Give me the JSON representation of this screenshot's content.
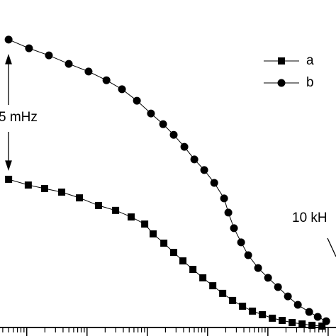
{
  "chart_data": {
    "type": "line",
    "xscale": "log",
    "xlim": [
      0.036,
      13500
    ],
    "ylim": [
      0,
      1.2
    ],
    "xticks": [
      0.1,
      1,
      10,
      100,
      1000,
      10000
    ],
    "series": [
      {
        "name": "a",
        "color": "#000000",
        "marker": "square",
        "x": [
          0.05,
          0.106,
          0.198,
          0.38,
          0.748,
          1.55,
          2.98,
          5.4,
          9.05,
          12.5,
          18.8,
          27.4,
          39,
          57.1,
          83.4,
          122,
          178,
          260,
          380,
          555,
          811,
          1187,
          1731,
          2531,
          3700,
          5400,
          7895
        ],
        "values": [
          0.543,
          0.522,
          0.509,
          0.496,
          0.475,
          0.447,
          0.429,
          0.405,
          0.379,
          0.343,
          0.309,
          0.275,
          0.244,
          0.213,
          0.182,
          0.153,
          0.125,
          0.099,
          0.078,
          0.06,
          0.047,
          0.034,
          0.026,
          0.018,
          0.013,
          0.008,
          0.005
        ]
      },
      {
        "name": "b",
        "color": "#000000",
        "marker": "circle",
        "x": [
          0.05,
          0.109,
          0.233,
          0.498,
          1.06,
          2.1,
          3.8,
          6.72,
          11.5,
          18.3,
          27.4,
          41.2,
          60.3,
          88,
          129,
          188,
          221,
          274,
          360,
          472,
          689,
          1008,
          1473,
          2149,
          3143,
          4846,
          6718,
          9295
        ],
        "values": [
          1.055,
          1.023,
          0.997,
          0.966,
          0.938,
          0.906,
          0.873,
          0.831,
          0.784,
          0.745,
          0.706,
          0.662,
          0.616,
          0.577,
          0.53,
          0.473,
          0.421,
          0.364,
          0.312,
          0.265,
          0.218,
          0.182,
          0.148,
          0.114,
          0.083,
          0.057,
          0.039,
          0.023
        ]
      }
    ],
    "annotations": [
      "5 mHz",
      "10 kH"
    ]
  }
}
